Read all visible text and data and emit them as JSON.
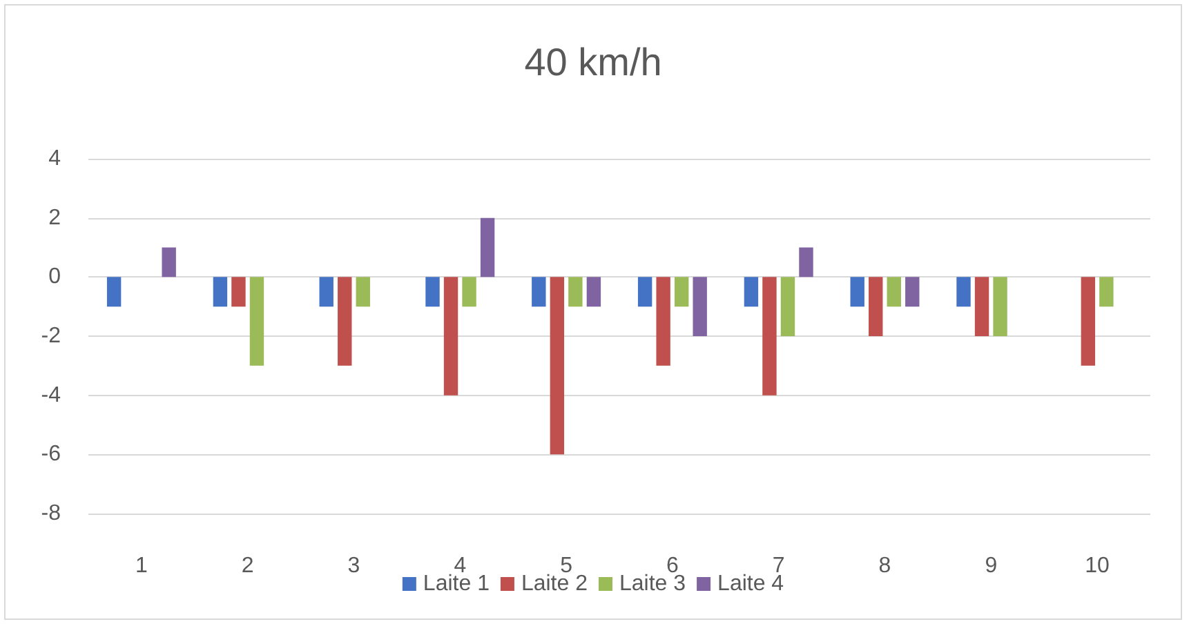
{
  "chart_data": {
    "type": "bar",
    "title": "40 km/h",
    "categories": [
      "1",
      "2",
      "3",
      "4",
      "5",
      "6",
      "7",
      "8",
      "9",
      "10"
    ],
    "series": [
      {
        "name": "Laite 1",
        "color": "#4472c4",
        "values": [
          -1,
          -1,
          -1,
          -1,
          -1,
          -1,
          -1,
          -1,
          -1,
          0
        ]
      },
      {
        "name": "Laite 2",
        "color": "#c0504d",
        "values": [
          0,
          -1,
          -3,
          -4,
          -6,
          -3,
          -4,
          -2,
          -2,
          -3
        ]
      },
      {
        "name": "Laite 3",
        "color": "#9bbb59",
        "values": [
          0,
          -3,
          -1,
          -1,
          -1,
          -1,
          -2,
          -1,
          -2,
          -1
        ]
      },
      {
        "name": "Laite 4",
        "color": "#8064a2",
        "values": [
          1,
          0,
          0,
          2,
          -1,
          -2,
          1,
          -1,
          0,
          0
        ]
      }
    ],
    "ylim": [
      -8,
      4
    ],
    "yticks": [
      -8,
      -6,
      -4,
      -2,
      0,
      2,
      4
    ],
    "grid": "y",
    "legend": "bottom"
  }
}
